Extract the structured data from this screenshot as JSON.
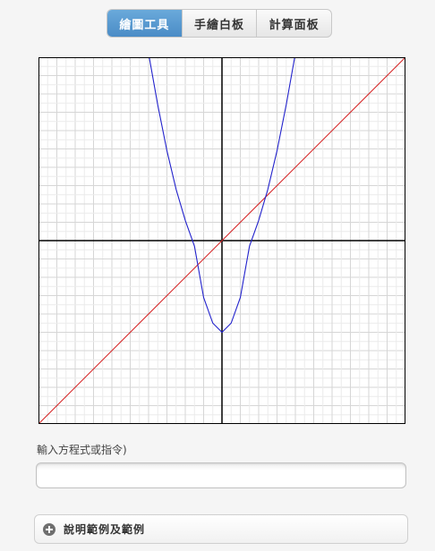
{
  "tabs": [
    {
      "label": "繪圖工具",
      "active": true
    },
    {
      "label": "手繪白板",
      "active": false
    },
    {
      "label": "計算面板",
      "active": false
    }
  ],
  "input": {
    "label": "輸入方程式或指令)",
    "value": "",
    "placeholder": ""
  },
  "help": {
    "label": "說明範例及範例"
  },
  "chart_data": {
    "type": "line",
    "xlim": [
      -10,
      10
    ],
    "ylim": [
      -10,
      10
    ],
    "grid": true,
    "series": [
      {
        "color": "#d62728",
        "x": [
          -10,
          10
        ],
        "y": [
          -10,
          10
        ]
      },
      {
        "color": "#2222cc",
        "x": [
          -4,
          -3.5,
          -3,
          -2.5,
          -2,
          -1.5,
          -1,
          -0.5,
          0,
          0.5,
          1,
          1.5,
          2,
          2.5,
          3,
          3.5,
          4
        ],
        "y": [
          10.2,
          7.4,
          4.9,
          2.8,
          1.1,
          -0.3,
          -3.1,
          -4.5,
          -5.0,
          -4.5,
          -3.1,
          -0.3,
          1.1,
          2.8,
          4.9,
          7.4,
          10.2
        ]
      }
    ]
  }
}
